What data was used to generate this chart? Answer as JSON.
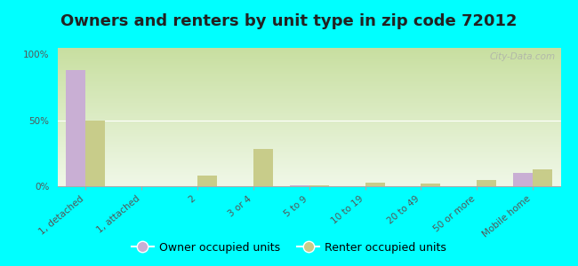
{
  "title": "Owners and renters by unit type in zip code 72012",
  "categories": [
    "1, detached",
    "1, attached",
    "2",
    "3 or 4",
    "5 to 9",
    "10 to 19",
    "20 to 49",
    "50 or more",
    "Mobile home"
  ],
  "owner_values": [
    88,
    0,
    0,
    0,
    1,
    0,
    0,
    0,
    10
  ],
  "renter_values": [
    50,
    0,
    8,
    28,
    1,
    3,
    2,
    5,
    13
  ],
  "owner_color": "#c9afd4",
  "renter_color": "#c8cc8a",
  "background_color": "#00ffff",
  "grad_top": "#c8dfa0",
  "grad_bottom": "#f0f8e8",
  "yticks": [
    0,
    50,
    100
  ],
  "ytick_labels": [
    "0%",
    "50%",
    "100%"
  ],
  "ylim": [
    0,
    105
  ],
  "bar_width": 0.35,
  "title_fontsize": 13,
  "tick_fontsize": 7.5,
  "legend_fontsize": 9,
  "watermark_text": "City-Data.com",
  "xlabel_rotation": 40
}
